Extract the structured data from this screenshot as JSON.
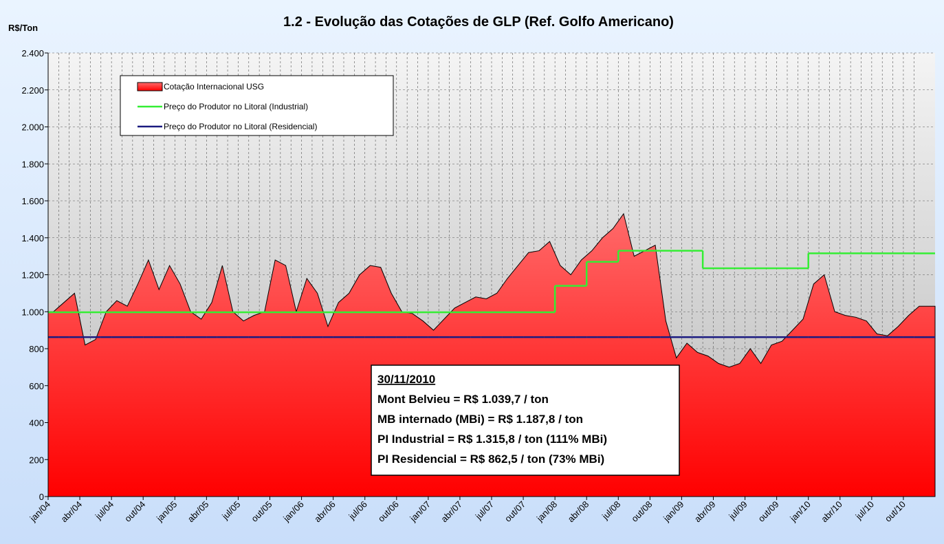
{
  "chart_data": {
    "type": "area",
    "title": "1.2 - Evolução das Cotações de GLP (Ref. Golfo Americano)",
    "y_label": "R$/Ton",
    "categories": [
      "jan/04",
      null,
      null,
      "abr/04",
      null,
      null,
      "jul/04",
      null,
      null,
      "out/04",
      null,
      null,
      "jan/05",
      null,
      null,
      "abr/05",
      null,
      null,
      "jul/05",
      null,
      null,
      "out/05",
      null,
      null,
      "jan/06",
      null,
      null,
      "abr/06",
      null,
      null,
      "jul/06",
      null,
      null,
      "out/06",
      null,
      null,
      "jan/07",
      null,
      null,
      "abr/07",
      null,
      null,
      "jul/07",
      null,
      null,
      "out/07",
      null,
      null,
      "jan/08",
      null,
      null,
      "abr/08",
      null,
      null,
      "jul/08",
      null,
      null,
      "out/08",
      null,
      null,
      "jan/09",
      null,
      null,
      "abr/09",
      null,
      null,
      "jul/09",
      null,
      null,
      "out/09",
      null,
      null,
      "jan/10",
      null,
      null,
      "abr/10",
      null,
      null,
      "jul/10",
      null,
      null,
      "out/10",
      null
    ],
    "series": [
      {
        "name": "Cotação Internacional USG",
        "color": "#ff2020",
        "style": "area",
        "values": [
          1000,
          1050,
          1100,
          820,
          850,
          1000,
          1060,
          1030,
          1150,
          1280,
          1120,
          1250,
          1150,
          1000,
          960,
          1050,
          1250,
          1000,
          950,
          980,
          1000,
          1280,
          1250,
          1000,
          1180,
          1100,
          920,
          1050,
          1100,
          1200,
          1250,
          1240,
          1100,
          1000,
          990,
          950,
          900,
          960,
          1020,
          1050,
          1080,
          1070,
          1100,
          1180,
          1250,
          1320,
          1330,
          1380,
          1250,
          1200,
          1280,
          1330,
          1400,
          1450,
          1530,
          1300,
          1330,
          1360,
          950,
          750,
          830,
          780,
          760,
          720,
          700,
          720,
          800,
          720,
          820,
          840,
          900,
          960,
          1150,
          1200,
          1000,
          980,
          970,
          950,
          880,
          870,
          920,
          980,
          1030
        ]
      },
      {
        "name": "Preço do Produtor no Litoral (Industrial)",
        "color": "#33ee33",
        "style": "step",
        "values": [
          997,
          997,
          997,
          997,
          997,
          997,
          997,
          997,
          997,
          997,
          997,
          997,
          997,
          997,
          997,
          997,
          997,
          997,
          997,
          997,
          997,
          997,
          997,
          997,
          997,
          997,
          997,
          997,
          997,
          997,
          997,
          997,
          997,
          997,
          997,
          997,
          997,
          997,
          997,
          997,
          997,
          997,
          997,
          997,
          997,
          997,
          997,
          997,
          1140,
          1140,
          1140,
          1270,
          1270,
          1270,
          1330,
          1330,
          1330,
          1330,
          1330,
          1330,
          1330,
          1330,
          1235,
          1235,
          1235,
          1235,
          1235,
          1235,
          1235,
          1235,
          1235,
          1235,
          1316,
          1316,
          1316,
          1316,
          1316,
          1316,
          1316,
          1316,
          1316,
          1316,
          1316
        ]
      },
      {
        "name": "Preço do Produtor no Litoral (Residencial)",
        "color": "#1a1a80",
        "style": "step",
        "values": [
          862.5,
          862.5,
          862.5,
          862.5,
          862.5,
          862.5,
          862.5,
          862.5,
          862.5,
          862.5,
          862.5,
          862.5,
          862.5,
          862.5,
          862.5,
          862.5,
          862.5,
          862.5,
          862.5,
          862.5,
          862.5,
          862.5,
          862.5,
          862.5,
          862.5,
          862.5,
          862.5,
          862.5,
          862.5,
          862.5,
          862.5,
          862.5,
          862.5,
          862.5,
          862.5,
          862.5,
          862.5,
          862.5,
          862.5,
          862.5,
          862.5,
          862.5,
          862.5,
          862.5,
          862.5,
          862.5,
          862.5,
          862.5,
          862.5,
          862.5,
          862.5,
          862.5,
          862.5,
          862.5,
          862.5,
          862.5,
          862.5,
          862.5,
          862.5,
          862.5,
          862.5,
          862.5,
          862.5,
          862.5,
          862.5,
          862.5,
          862.5,
          862.5,
          862.5,
          862.5,
          862.5,
          862.5,
          862.5,
          862.5,
          862.5,
          862.5,
          862.5,
          862.5,
          862.5,
          862.5,
          862.5,
          862.5,
          862.5
        ]
      }
    ],
    "ylim": [
      0,
      2400
    ],
    "yticks": [
      0,
      200,
      400,
      600,
      800,
      {
        "value": 1000,
        "label": "1.000"
      },
      {
        "value": 1200,
        "label": "1.200"
      },
      {
        "value": 1400,
        "label": "1.400"
      },
      {
        "value": 1600,
        "label": "1.600"
      },
      {
        "value": 1800,
        "label": "1.800"
      },
      {
        "value": 2000,
        "label": "2.000"
      },
      {
        "value": 2200,
        "label": "2.200"
      },
      {
        "value": 2400,
        "label": "2.400"
      }
    ],
    "grid": true,
    "legend": "upper left",
    "annotations": [
      "30/11/2010",
      "Mont Belvieu = R$ 1.039,7 / ton",
      "MB internado (MBi) = R$ 1.187,8 / ton",
      "PI Industrial = R$ 1.315,8 / ton (111% MBi)",
      "PI Residencial = R$ 862,5 / ton (73% MBi)"
    ]
  }
}
